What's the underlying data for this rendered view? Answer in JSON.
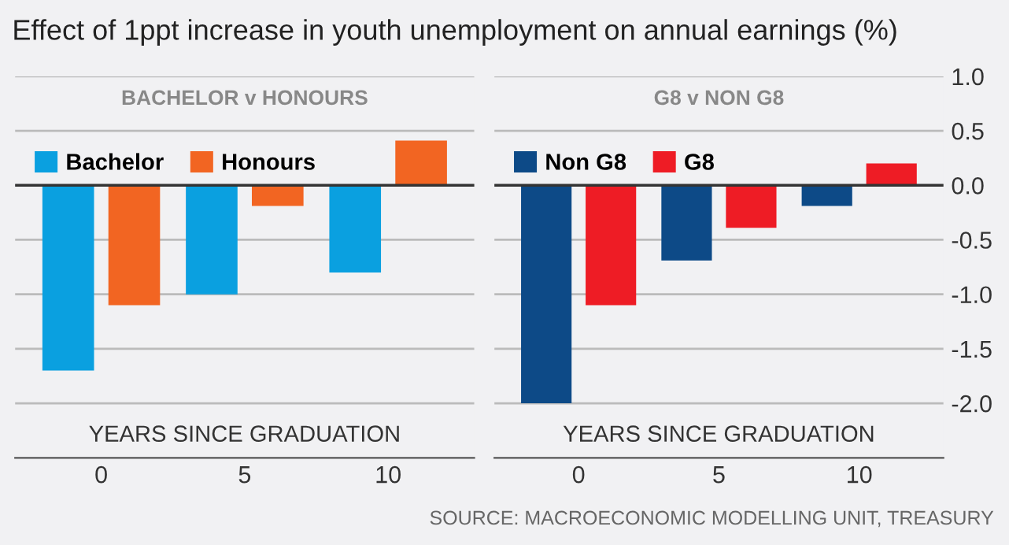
{
  "chart_data": [
    {
      "type": "bar",
      "title": "Effect of 1ppt increase in youth unemployment on annual earnings (%)",
      "subtitle": "BACHELOR v HONOURS",
      "xlabel": "YEARS SINCE GRADUATION",
      "categories": [
        "0",
        "5",
        "10"
      ],
      "series": [
        {
          "name": "Bachelor",
          "color": "#0aa0e0",
          "values": [
            -1.7,
            -1.0,
            -0.8
          ]
        },
        {
          "name": "Honours",
          "color": "#f26522",
          "values": [
            -1.1,
            -0.19,
            0.41
          ]
        }
      ],
      "ylim": [
        -2.5,
        1.0
      ],
      "yticks": [
        1.0,
        0.5,
        0,
        -0.5,
        -1.0,
        -1.5,
        -2.0
      ],
      "tick_labels": "x",
      "grid": "y",
      "legend": "top left"
    },
    {
      "type": "bar",
      "subtitle": "G8 v NON G8",
      "xlabel": "YEARS SINCE GRADUATION",
      "categories": [
        "0",
        "5",
        "10"
      ],
      "series": [
        {
          "name": "Non G8",
          "color": "#0d4a87",
          "values": [
            -2.0,
            -0.69,
            -0.19
          ]
        },
        {
          "name": "G8",
          "color": "#ee1c25",
          "values": [
            -1.1,
            -0.39,
            0.2
          ]
        }
      ],
      "ylim": [
        -2.5,
        1.0
      ],
      "yticks": [
        {
          "value": 1.0,
          "label": "1.0"
        },
        {
          "value": 0.5,
          "label": "0.5"
        },
        {
          "value": 0,
          "label": "0.0"
        },
        {
          "value": -0.5,
          "label": "-0.5"
        },
        {
          "value": -1.0,
          "label": "-1.0"
        },
        {
          "value": -1.5,
          "label": "-1.5"
        },
        {
          "value": -2.0,
          "label": "-2.0"
        }
      ],
      "grid": "y",
      "legend": "top left",
      "annotations": [
        "SOURCE: MACROECONOMIC MODELLING UNIT, TREASURY"
      ]
    }
  ]
}
